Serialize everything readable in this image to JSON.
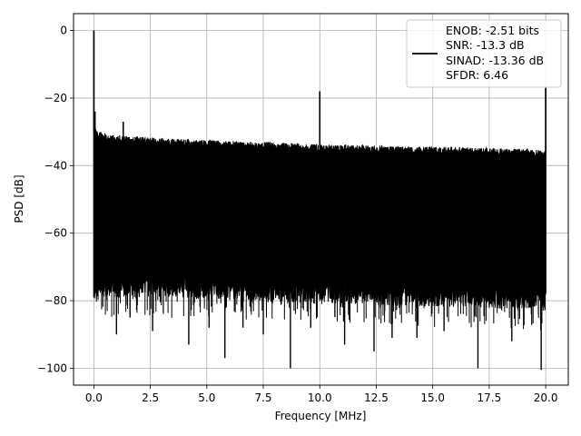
{
  "chart_data": {
    "type": "line",
    "xlabel": "Frequency [MHz]",
    "ylabel": "PSD [dB]",
    "xlim": [
      -0.9,
      21.0
    ],
    "ylim": [
      -105,
      5
    ],
    "xticks": [
      0.0,
      2.5,
      5.0,
      7.5,
      10.0,
      12.5,
      15.0,
      17.5,
      20.0
    ],
    "xtick_labels": [
      "0.0",
      "2.5",
      "5.0",
      "7.5",
      "10.0",
      "12.5",
      "15.0",
      "17.5",
      "20.0"
    ],
    "yticks": [
      0,
      -20,
      -40,
      -60,
      -80,
      -100
    ],
    "ytick_labels": [
      "0",
      "−20",
      "−40",
      "−60",
      "−80",
      "−100"
    ],
    "grid": true,
    "legend_placement": "top-right",
    "legend_lines": [
      "ENOB: -2.51 bits",
      "SNR: -13.3 dB",
      "SINAD: -13.36 dB",
      "SFDR: 6.46"
    ],
    "line_color": "#000000",
    "noise_envelope": {
      "x": [
        0.0,
        0.2,
        0.5,
        1.0,
        2.0,
        3.0,
        4.0,
        5.0,
        6.0,
        7.0,
        8.0,
        9.0,
        10.0,
        11.0,
        12.0,
        13.0,
        14.0,
        15.0,
        16.0,
        17.0,
        18.0,
        19.0,
        20.0
      ],
      "top": [
        -30,
        -31,
        -31.5,
        -32,
        -32.5,
        -33,
        -33.2,
        -33.5,
        -33.8,
        -34,
        -34.3,
        -34.5,
        -34.8,
        -35,
        -35,
        -35.2,
        -35.3,
        -35.5,
        -35.6,
        -35.8,
        -36,
        -36.2,
        -36.5
      ],
      "bottom": [
        -75,
        -74,
        -73,
        -73,
        -73,
        -73,
        -73.5,
        -73.5,
        -74,
        -74,
        -74.5,
        -74.5,
        -75,
        -75,
        -75,
        -75.5,
        -75.5,
        -76,
        -76,
        -76,
        -76.5,
        -76.5,
        -77
      ]
    },
    "spikes": [
      {
        "x": 0.0,
        "y": 0.0
      },
      {
        "x": 0.05,
        "y": -24
      },
      {
        "x": 1.3,
        "y": -27
      },
      {
        "x": 10.0,
        "y": -18
      },
      {
        "x": 20.0,
        "y": -17
      }
    ],
    "dips": [
      {
        "x": 1.0,
        "y": -90
      },
      {
        "x": 1.6,
        "y": -85
      },
      {
        "x": 2.6,
        "y": -89
      },
      {
        "x": 4.2,
        "y": -93
      },
      {
        "x": 5.1,
        "y": -88
      },
      {
        "x": 5.8,
        "y": -97
      },
      {
        "x": 6.6,
        "y": -88
      },
      {
        "x": 7.5,
        "y": -90
      },
      {
        "x": 8.7,
        "y": -100
      },
      {
        "x": 9.6,
        "y": -88
      },
      {
        "x": 11.1,
        "y": -93
      },
      {
        "x": 12.4,
        "y": -95
      },
      {
        "x": 13.2,
        "y": -91
      },
      {
        "x": 14.3,
        "y": -91
      },
      {
        "x": 15.5,
        "y": -89
      },
      {
        "x": 17.0,
        "y": -100
      },
      {
        "x": 18.5,
        "y": -92
      },
      {
        "x": 19.8,
        "y": -100.5
      }
    ]
  }
}
